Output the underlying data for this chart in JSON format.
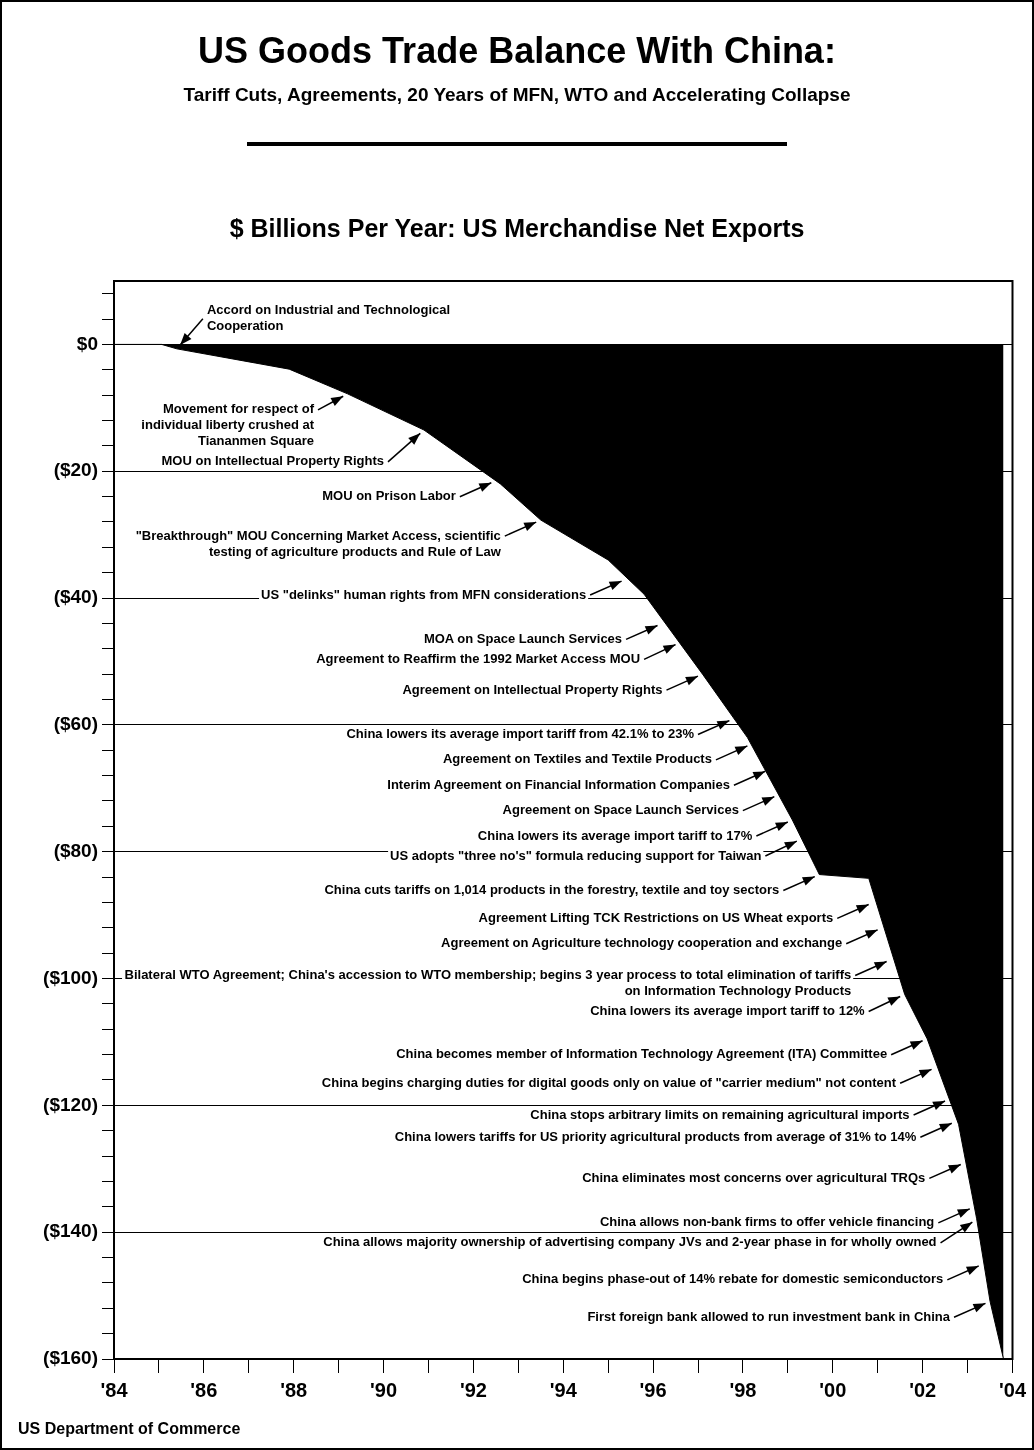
{
  "chart_data": {
    "type": "area",
    "title": "US Goods Trade Balance With China:",
    "subtitle": "Tariff Cuts, Agreements, 20 Years of MFN, WTO and Accelerating Collapse",
    "ylabel": "$ Billions Per Year: US Merchandise Net Exports",
    "x": [
      1984,
      1985.06,
      1985.4,
      1987.9,
      1989.2,
      1990.9,
      1992.6,
      1993.5,
      1995.0,
      1995.8,
      1997.1,
      1998.1,
      1999.1,
      1999.7,
      2000.8,
      2001.6,
      2002.1,
      2002.8,
      2003.2,
      2003.5,
      2003.8
    ],
    "series": [
      {
        "color": "#000000",
        "values": [
          0,
          0,
          -0.7,
          -3.9,
          -7.8,
          -13.5,
          -22,
          -27.7,
          -34,
          -39.4,
          -52,
          -62,
          -75,
          -83.6,
          -84.2,
          -102.5,
          -109.5,
          -123,
          -137.8,
          -150.9,
          -160
        ]
      }
    ],
    "marker": "none",
    "xlim": [
      1984,
      2004
    ],
    "xticks": [
      {
        "value": 1984,
        "label": "'84"
      },
      {
        "value": 1985,
        "label": null
      },
      {
        "value": 1986,
        "label": "'86"
      },
      {
        "value": 1987,
        "label": null
      },
      {
        "value": 1988,
        "label": "'88"
      },
      {
        "value": 1989,
        "label": null
      },
      {
        "value": 1990,
        "label": "'90"
      },
      {
        "value": 1991,
        "label": null
      },
      {
        "value": 1992,
        "label": "'92"
      },
      {
        "value": 1993,
        "label": null
      },
      {
        "value": 1994,
        "label": "'94"
      },
      {
        "value": 1995,
        "label": null
      },
      {
        "value": 1996,
        "label": "'96"
      },
      {
        "value": 1997,
        "label": null
      },
      {
        "value": 1998,
        "label": "'98"
      },
      {
        "value": 1999,
        "label": null
      },
      {
        "value": 2000,
        "label": "'00"
      },
      {
        "value": 2001,
        "label": null
      },
      {
        "value": 2002,
        "label": "'02"
      },
      {
        "value": 2003,
        "label": null
      },
      {
        "value": 2004,
        "label": "'04"
      }
    ],
    "ylim": [
      -160,
      10
    ],
    "yticks": [
      {
        "value": 8,
        "label": null
      },
      {
        "value": 4,
        "label": null
      },
      {
        "value": 0,
        "label": "$0"
      },
      {
        "value": -4,
        "label": null
      },
      {
        "value": -8,
        "label": null
      },
      {
        "value": -12,
        "label": null
      },
      {
        "value": -16,
        "label": null
      },
      {
        "value": -20,
        "label": "($20)"
      },
      {
        "value": -24,
        "label": null
      },
      {
        "value": -28,
        "label": null
      },
      {
        "value": -32,
        "label": null
      },
      {
        "value": -36,
        "label": null
      },
      {
        "value": -40,
        "label": "($40)"
      },
      {
        "value": -44,
        "label": null
      },
      {
        "value": -48,
        "label": null
      },
      {
        "value": -52,
        "label": null
      },
      {
        "value": -56,
        "label": null
      },
      {
        "value": -60,
        "label": "($60)"
      },
      {
        "value": -64,
        "label": null
      },
      {
        "value": -68,
        "label": null
      },
      {
        "value": -72,
        "label": null
      },
      {
        "value": -76,
        "label": null
      },
      {
        "value": -80,
        "label": "($80)"
      },
      {
        "value": -84,
        "label": null
      },
      {
        "value": -88,
        "label": null
      },
      {
        "value": -92,
        "label": null
      },
      {
        "value": -96,
        "label": null
      },
      {
        "value": -100,
        "label": "($100)"
      },
      {
        "value": -104,
        "label": null
      },
      {
        "value": -108,
        "label": null
      },
      {
        "value": -112,
        "label": null
      },
      {
        "value": -116,
        "label": null
      },
      {
        "value": -120,
        "label": "($120)"
      },
      {
        "value": -124,
        "label": null
      },
      {
        "value": -128,
        "label": null
      },
      {
        "value": -132,
        "label": null
      },
      {
        "value": -136,
        "label": null
      },
      {
        "value": -140,
        "label": "($140)"
      },
      {
        "value": -144,
        "label": null
      },
      {
        "value": -148,
        "label": null
      },
      {
        "value": -152,
        "label": null
      },
      {
        "value": -156,
        "label": null
      },
      {
        "value": -160,
        "label": "($160)"
      }
    ],
    "grid": "y",
    "annotations": [
      {
        "text": "Accord on Industrial and Technological Cooperation",
        "x": 1985.4,
        "y": -0.7
      },
      {
        "text": "Movement for respect of individual liberty crushed at Tiananmen Square",
        "x": 1989.2,
        "y": -7.8
      },
      {
        "text": "MOU on Intellectual Property Rights",
        "x": 1990.9,
        "y": -13.5
      },
      {
        "text": "MOU on Prison Labor",
        "x": 1992.5,
        "y": -21.5
      },
      {
        "text": "\"Breakthrough\" MOU Concerning Market Access, scientific testing of agriculture products and Rule of Law",
        "x": 1993.5,
        "y": -27.7
      },
      {
        "text": "US \"delinks\" human rights from MFN considerations",
        "x": 1995.4,
        "y": -37
      },
      {
        "text": "MOA on Space Launch Services",
        "x": 1996.2,
        "y": -44
      },
      {
        "text": "Agreement to Reaffirm the 1992 Market Access MOU",
        "x": 1996.6,
        "y": -47
      },
      {
        "text": "Agreement on Intellectual Property Rights",
        "x": 1997.1,
        "y": -52
      },
      {
        "text": "China lowers its average import tariff from 42.1% to 23%",
        "x": 1997.8,
        "y": -59
      },
      {
        "text": "Agreement on Textiles and Textile Products",
        "x": 1998.2,
        "y": -63
      },
      {
        "text": "Interim Agreement on Financial Information Companies",
        "x": 1998.6,
        "y": -67
      },
      {
        "text": "Agreement on Space Launch Services",
        "x": 1998.8,
        "y": -71
      },
      {
        "text": "China lowers its average import tariff to 17%",
        "x": 1999.1,
        "y": -75
      },
      {
        "text": "US adopts \"three no's\" formula reducing support for Taiwan",
        "x": 1999.3,
        "y": -78
      },
      {
        "text": "China cuts tariffs on 1,014 products in the forestry, textile and toy sectors",
        "x": 1999.7,
        "y": -83.6
      },
      {
        "text": "Agreement Lifting TCK Restrictions on US Wheat exports",
        "x": 2000.9,
        "y": -88
      },
      {
        "text": "Agreement on Agriculture technology cooperation and exchange",
        "x": 2001.1,
        "y": -92
      },
      {
        "text": "Bilateral WTO Agreement; China's accession to WTO membership; begins 3 year process to total elimination of tariffs on Information Technology Products",
        "x": 2001.3,
        "y": -97
      },
      {
        "text": "China lowers its average import tariff to 12%",
        "x": 2001.6,
        "y": -102.5
      },
      {
        "text": "China becomes member of Information Technology Agreement (ITA) Committee",
        "x": 2002.1,
        "y": -109.5
      },
      {
        "text": "China begins charging duties for digital goods only on value of \"carrier medium\" not content",
        "x": 2002.3,
        "y": -114
      },
      {
        "text": "China stops arbitrary limits on remaining agricultural imports",
        "x": 2002.6,
        "y": -119
      },
      {
        "text": "China lowers tariffs for US priority agricultural products from average of 31% to 14%",
        "x": 2002.75,
        "y": -122.5
      },
      {
        "text": "China eliminates most concerns over agricultural TRQs",
        "x": 2002.95,
        "y": -129
      },
      {
        "text": "China allows non-bank firms to offer vehicle financing",
        "x": 2003.15,
        "y": -136
      },
      {
        "text": "China allows majority ownership of advertising company JVs and 2-year phase in for wholly owned",
        "x": 2003.2,
        "y": -138
      },
      {
        "text": "China begins phase-out of 14% rebate for domestic semiconductors",
        "x": 2003.35,
        "y": -145
      },
      {
        "text": "First foreign bank allowed to run investment bank in China",
        "x": 2003.5,
        "y": -150.9
      },
      "US Department of Commerce"
    ]
  }
}
